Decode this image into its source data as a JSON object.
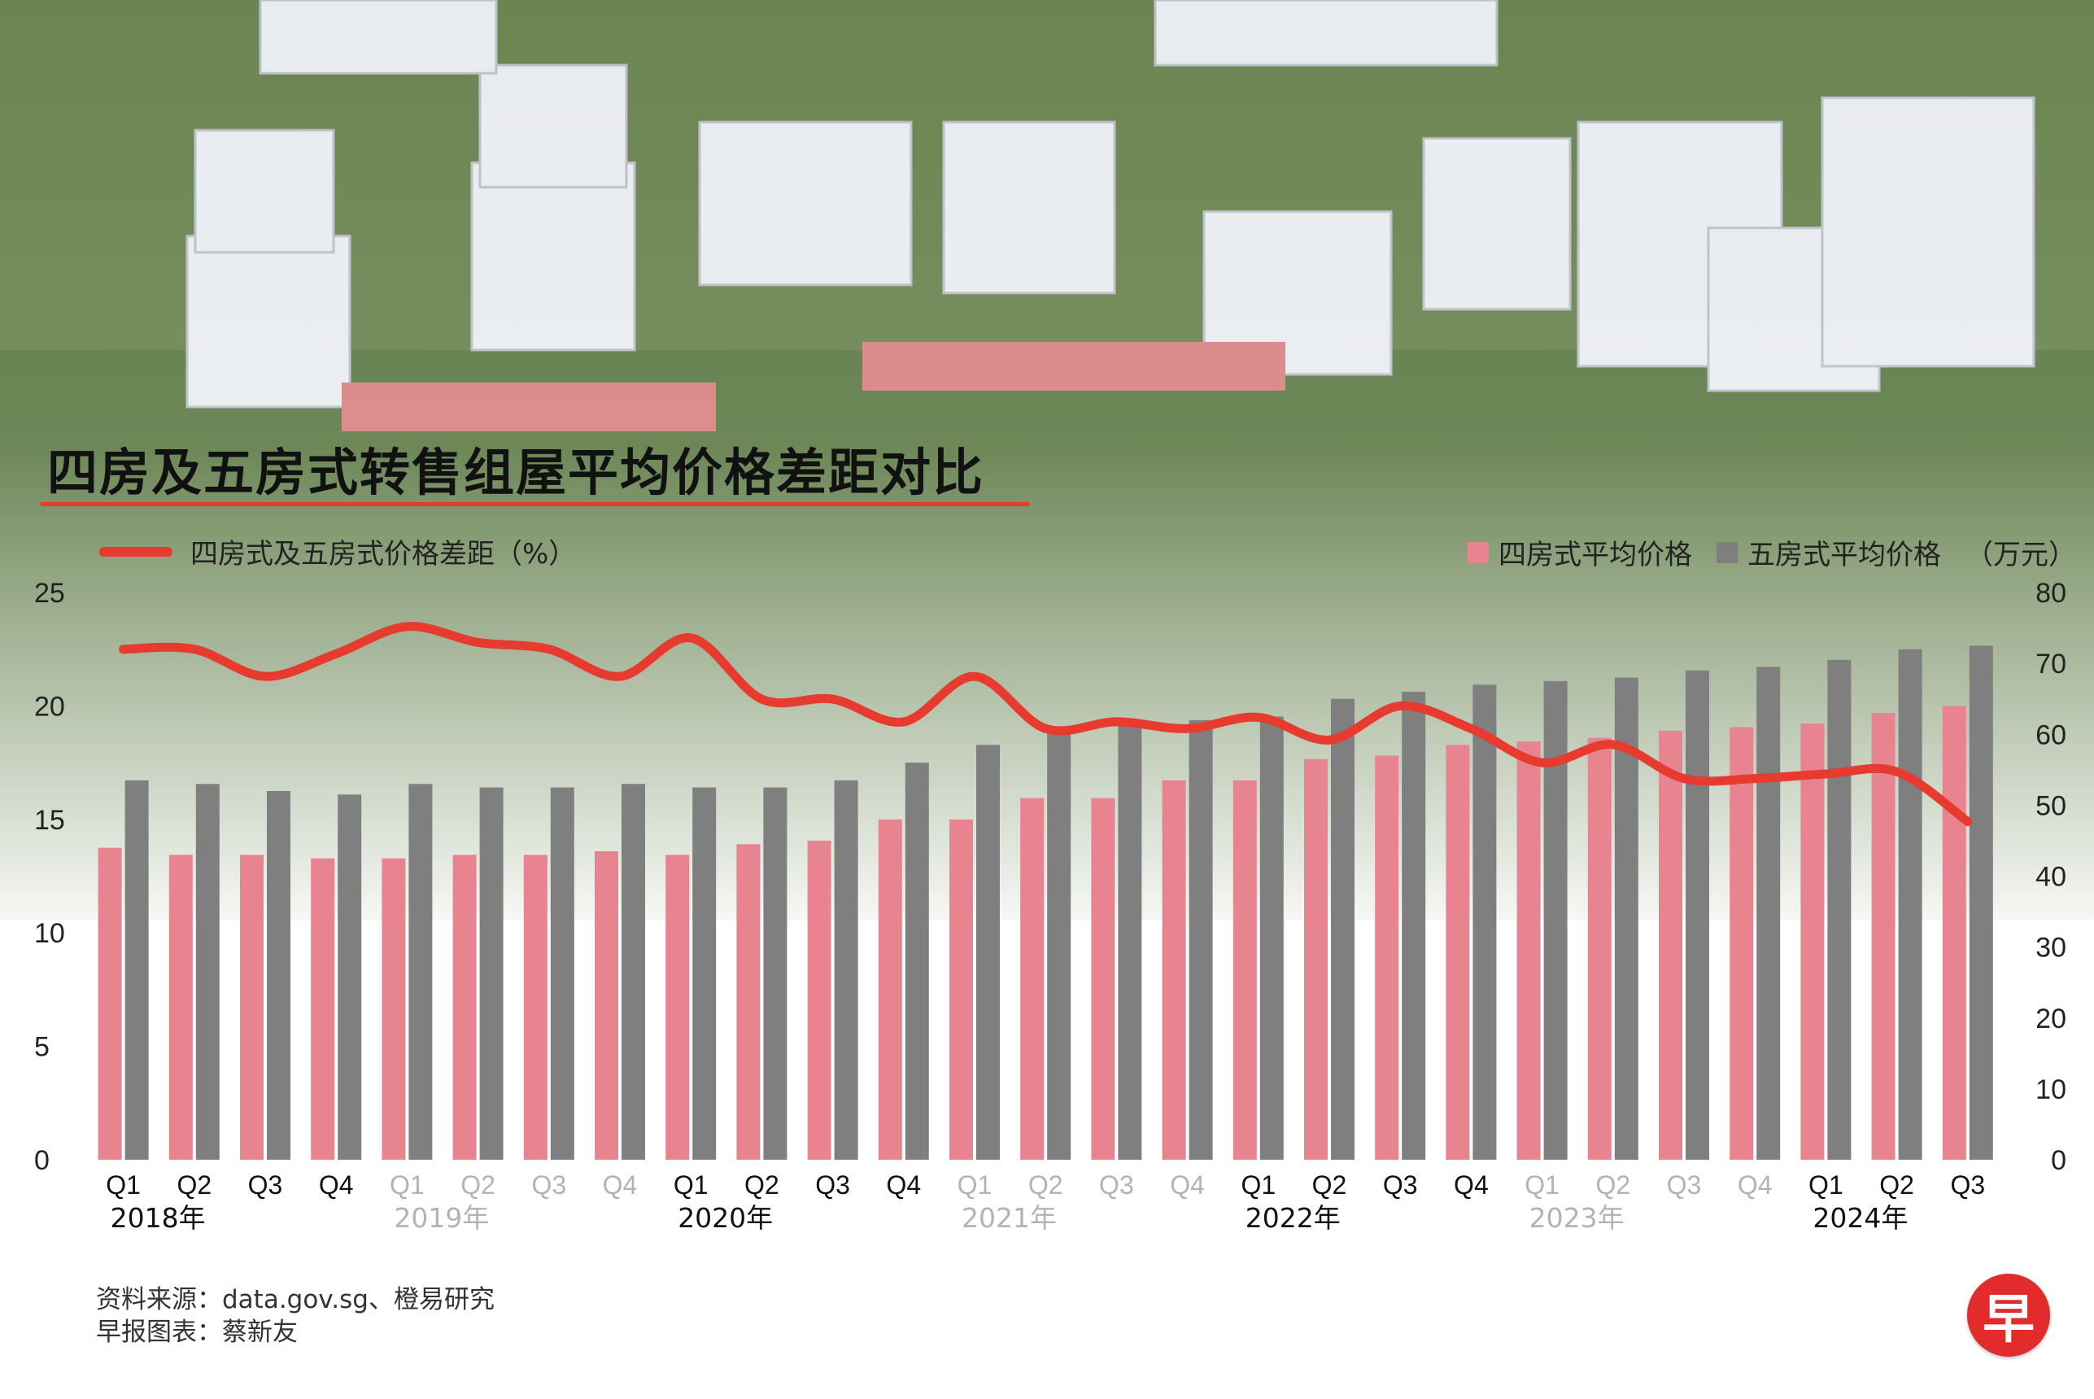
{
  "title": "四房及五房式转售组屋平均价格差距对比",
  "legend": {
    "line_label": "四房式及五房式价格差距（%）",
    "bar4_label": "四房式平均价格",
    "bar5_label": "五房式平均价格",
    "unit_label": "（万元）"
  },
  "source": {
    "line1": "资料来源：data.gov.sg、橙易研究",
    "line2": "早报图表：蔡新友"
  },
  "logo": {
    "text": "早"
  },
  "colors": {
    "line": "#e63b2e",
    "bar4": "#e8848f",
    "bar5": "#7f7f7f",
    "title_underline": "#e63b2e",
    "year_highlight": "#111111",
    "year_muted": "#b3b3b3",
    "logo": "#e32b2b"
  },
  "chart_data": {
    "type": "bar",
    "title": "四房及五房式转售组屋平均价格差距对比",
    "categories": [
      "Q1",
      "Q2",
      "Q3",
      "Q4",
      "Q1",
      "Q2",
      "Q3",
      "Q4",
      "Q1",
      "Q2",
      "Q3",
      "Q4",
      "Q1",
      "Q2",
      "Q3",
      "Q4",
      "Q1",
      "Q2",
      "Q3",
      "Q4",
      "Q1",
      "Q2",
      "Q3",
      "Q4",
      "Q1",
      "Q2",
      "Q3"
    ],
    "year_groups": [
      {
        "label": "2018年",
        "highlight": true
      },
      {
        "label": "2019年",
        "highlight": false
      },
      {
        "label": "2020年",
        "highlight": true
      },
      {
        "label": "2021年",
        "highlight": false
      },
      {
        "label": "2022年",
        "highlight": true
      },
      {
        "label": "2023年",
        "highlight": false
      },
      {
        "label": "2024年",
        "highlight": true
      }
    ],
    "series": [
      {
        "name": "四房式平均价格",
        "axis": "right",
        "kind": "bar",
        "values": [
          44,
          43,
          43,
          42.5,
          42.5,
          43,
          43,
          43.5,
          43,
          44.5,
          45,
          48,
          48,
          51,
          51,
          53.5,
          53.5,
          56.5,
          57,
          58.5,
          59,
          59.5,
          60.5,
          61,
          61.5,
          63,
          64
        ]
      },
      {
        "name": "五房式平均价格",
        "axis": "right",
        "kind": "bar",
        "values": [
          53.5,
          53,
          52,
          51.5,
          53,
          52.5,
          52.5,
          53,
          52.5,
          52.5,
          53.5,
          56,
          58.5,
          61,
          61.5,
          62,
          62.5,
          65,
          66,
          67,
          67.5,
          68,
          69,
          69.5,
          70.5,
          72,
          72.5
        ]
      },
      {
        "name": "四房式及五房式价格差距（%）",
        "axis": "left",
        "kind": "line",
        "values": [
          22.5,
          22.5,
          21.3,
          22.3,
          23.5,
          22.8,
          22.5,
          21.3,
          23.0,
          20.3,
          20.3,
          19.3,
          21.3,
          19.0,
          19.3,
          19.0,
          19.5,
          18.5,
          20.0,
          19.0,
          17.5,
          18.3,
          16.8,
          16.8,
          17.0,
          17.1,
          14.9
        ]
      }
    ],
    "y_left": {
      "label": "%",
      "min": 0,
      "max": 25,
      "ticks": [
        0,
        5,
        10,
        15,
        20,
        25
      ]
    },
    "y_right": {
      "label": "万元",
      "min": 0,
      "max": 80,
      "ticks": [
        0,
        10,
        20,
        30,
        40,
        50,
        60,
        70,
        80
      ]
    },
    "grid": false,
    "legend_position": "top"
  }
}
